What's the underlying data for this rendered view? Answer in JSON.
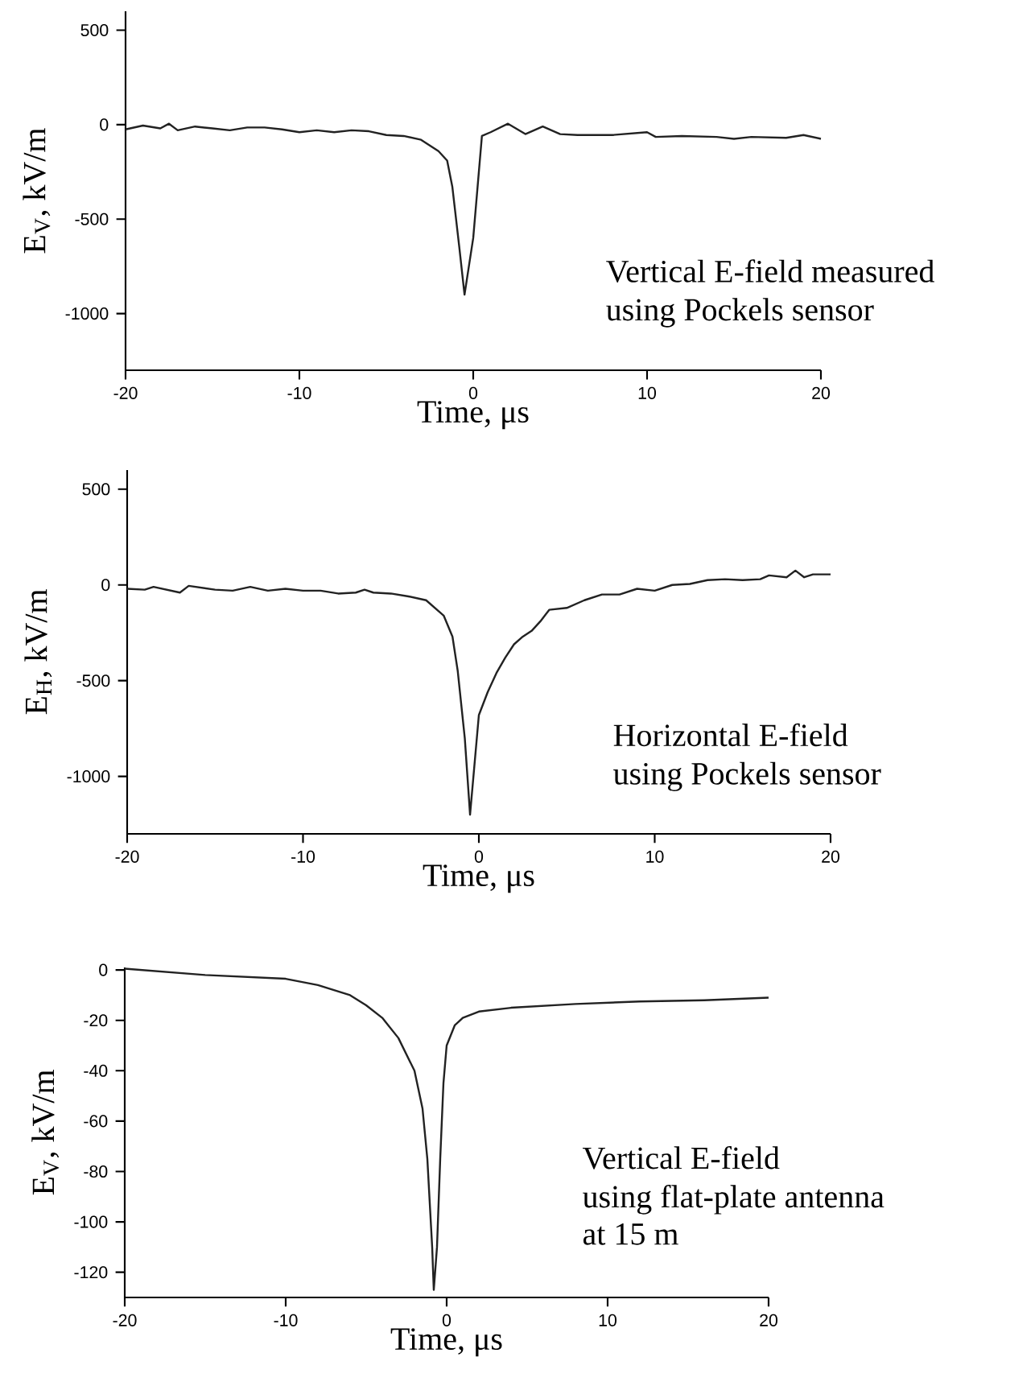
{
  "chart_data": [
    {
      "type": "line",
      "xlabel": "Time,  μs",
      "ylabel": "E$_{V}$,  kV/m",
      "annotations": [
        "Vertical E-field measured",
        "using Pockels sensor"
      ],
      "xlim": [
        -20,
        20
      ],
      "ylim": [
        -1300,
        600
      ],
      "xticks": [
        -20,
        -10,
        0,
        10,
        20
      ],
      "yticks": [
        -1000,
        -500,
        0,
        500
      ],
      "line_style": "solid",
      "series": [
        {
          "color": "#222222",
          "x": [
            -20,
            -19,
            -18,
            -17.5,
            -17,
            -16,
            -15,
            -14,
            -13,
            -12,
            -11,
            -10,
            -9,
            -8,
            -7,
            -6,
            -5,
            -4,
            -3,
            -2,
            -1.5,
            -1.2,
            -0.8,
            -0.5,
            0,
            0.5,
            1,
            2,
            3,
            4,
            5,
            6,
            8,
            10,
            10.5,
            12,
            14,
            15,
            16,
            18,
            19,
            20
          ],
          "values": [
            -25,
            -5,
            -20,
            5,
            -30,
            -10,
            -20,
            -30,
            -15,
            -15,
            -25,
            -40,
            -30,
            -40,
            -30,
            -35,
            -55,
            -60,
            -80,
            -140,
            -190,
            -330,
            -650,
            -900,
            -600,
            -60,
            -40,
            5,
            -50,
            -10,
            -50,
            -55,
            -55,
            -40,
            -65,
            -60,
            -65,
            -75,
            -65,
            -70,
            -55,
            -75
          ]
        }
      ]
    },
    {
      "type": "line",
      "xlabel": "Time,  μs",
      "ylabel": "E$_{H}$,  kV/m",
      "annotations": [
        "Horizontal E-field",
        "using Pockels sensor"
      ],
      "xlim": [
        -20,
        20
      ],
      "ylim": [
        -1300,
        600
      ],
      "xticks": [
        -20,
        -10,
        0,
        10,
        20
      ],
      "yticks": [
        -1000,
        -500,
        0,
        500
      ],
      "line_style": "solid",
      "series": [
        {
          "color": "#222222",
          "x": [
            -20,
            -19,
            -18.5,
            -17,
            -16.5,
            -15,
            -14,
            -13,
            -12,
            -11,
            -10,
            -9,
            -8,
            -7,
            -6.5,
            -6,
            -5,
            -4,
            -3,
            -2,
            -1.5,
            -1.2,
            -0.8,
            -0.5,
            0,
            0.5,
            1,
            1.5,
            2,
            2.5,
            3,
            3.5,
            4,
            5,
            6,
            7,
            8,
            9,
            10,
            11,
            12,
            13,
            14,
            15,
            16,
            16.5,
            17.5,
            18,
            18.5,
            19,
            20
          ],
          "values": [
            -20,
            -25,
            -10,
            -40,
            -5,
            -25,
            -30,
            -10,
            -30,
            -20,
            -30,
            -30,
            -45,
            -40,
            -25,
            -40,
            -45,
            -60,
            -80,
            -160,
            -270,
            -450,
            -800,
            -1200,
            -680,
            -560,
            -460,
            -380,
            -310,
            -270,
            -240,
            -190,
            -130,
            -120,
            -80,
            -50,
            -50,
            -20,
            -30,
            0,
            5,
            25,
            30,
            25,
            30,
            50,
            40,
            75,
            40,
            55,
            55
          ]
        }
      ]
    },
    {
      "type": "line",
      "xlabel": "Time,  μs",
      "ylabel": "E$_{V}$,  kV/m",
      "annotations": [
        "Vertical E-field",
        "using flat-plate antenna",
        "at 15 m"
      ],
      "xlim": [
        -20,
        20
      ],
      "ylim": [
        -130,
        1
      ],
      "xticks": [
        -20,
        -10,
        0,
        10,
        20
      ],
      "yticks": [
        -120,
        -100,
        -80,
        -60,
        -40,
        -20,
        0
      ],
      "line_style": "solid",
      "series": [
        {
          "color": "#222222",
          "x": [
            -20,
            -15,
            -10,
            -8,
            -6,
            -5,
            -4,
            -3,
            -2,
            -1.5,
            -1.2,
            -0.9,
            -0.8,
            -0.6,
            -0.4,
            -0.2,
            0,
            0.5,
            1,
            2,
            4,
            8,
            12,
            16,
            20
          ],
          "values": [
            0.5,
            -2,
            -3.5,
            -6,
            -10,
            -14,
            -19,
            -27,
            -40,
            -55,
            -75,
            -110,
            -127,
            -110,
            -75,
            -45,
            -30,
            -22,
            -19,
            -16.5,
            -15,
            -13.5,
            -12.5,
            -12,
            -11
          ]
        }
      ]
    }
  ]
}
